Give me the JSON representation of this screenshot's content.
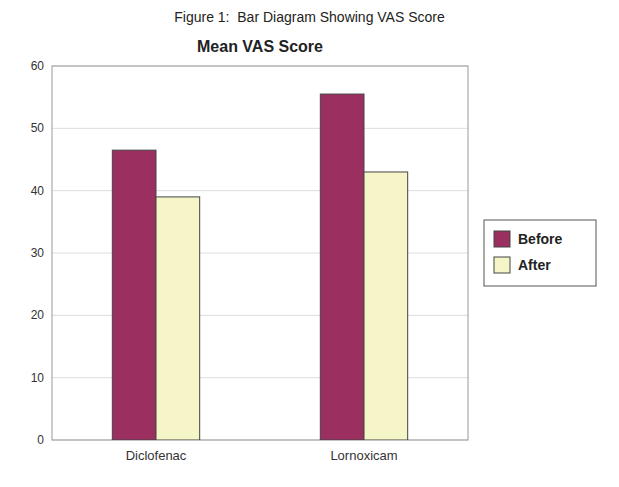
{
  "chart_data": {
    "type": "bar",
    "title": "Figure 1:  Bar Diagram Showing VAS Score",
    "subtitle": "Mean VAS Score",
    "categories": [
      "Diclofenac",
      "Lornoxicam"
    ],
    "series": [
      {
        "name": "Before",
        "color": "#9B3060",
        "values": [
          46.5,
          55.5
        ]
      },
      {
        "name": "After",
        "color": "#F5F5C8",
        "values": [
          39.0,
          43.0
        ]
      }
    ],
    "ylim": [
      0,
      60
    ],
    "yticks": [
      0,
      10,
      20,
      30,
      40,
      50,
      60
    ],
    "grid": true,
    "legend": "right"
  }
}
